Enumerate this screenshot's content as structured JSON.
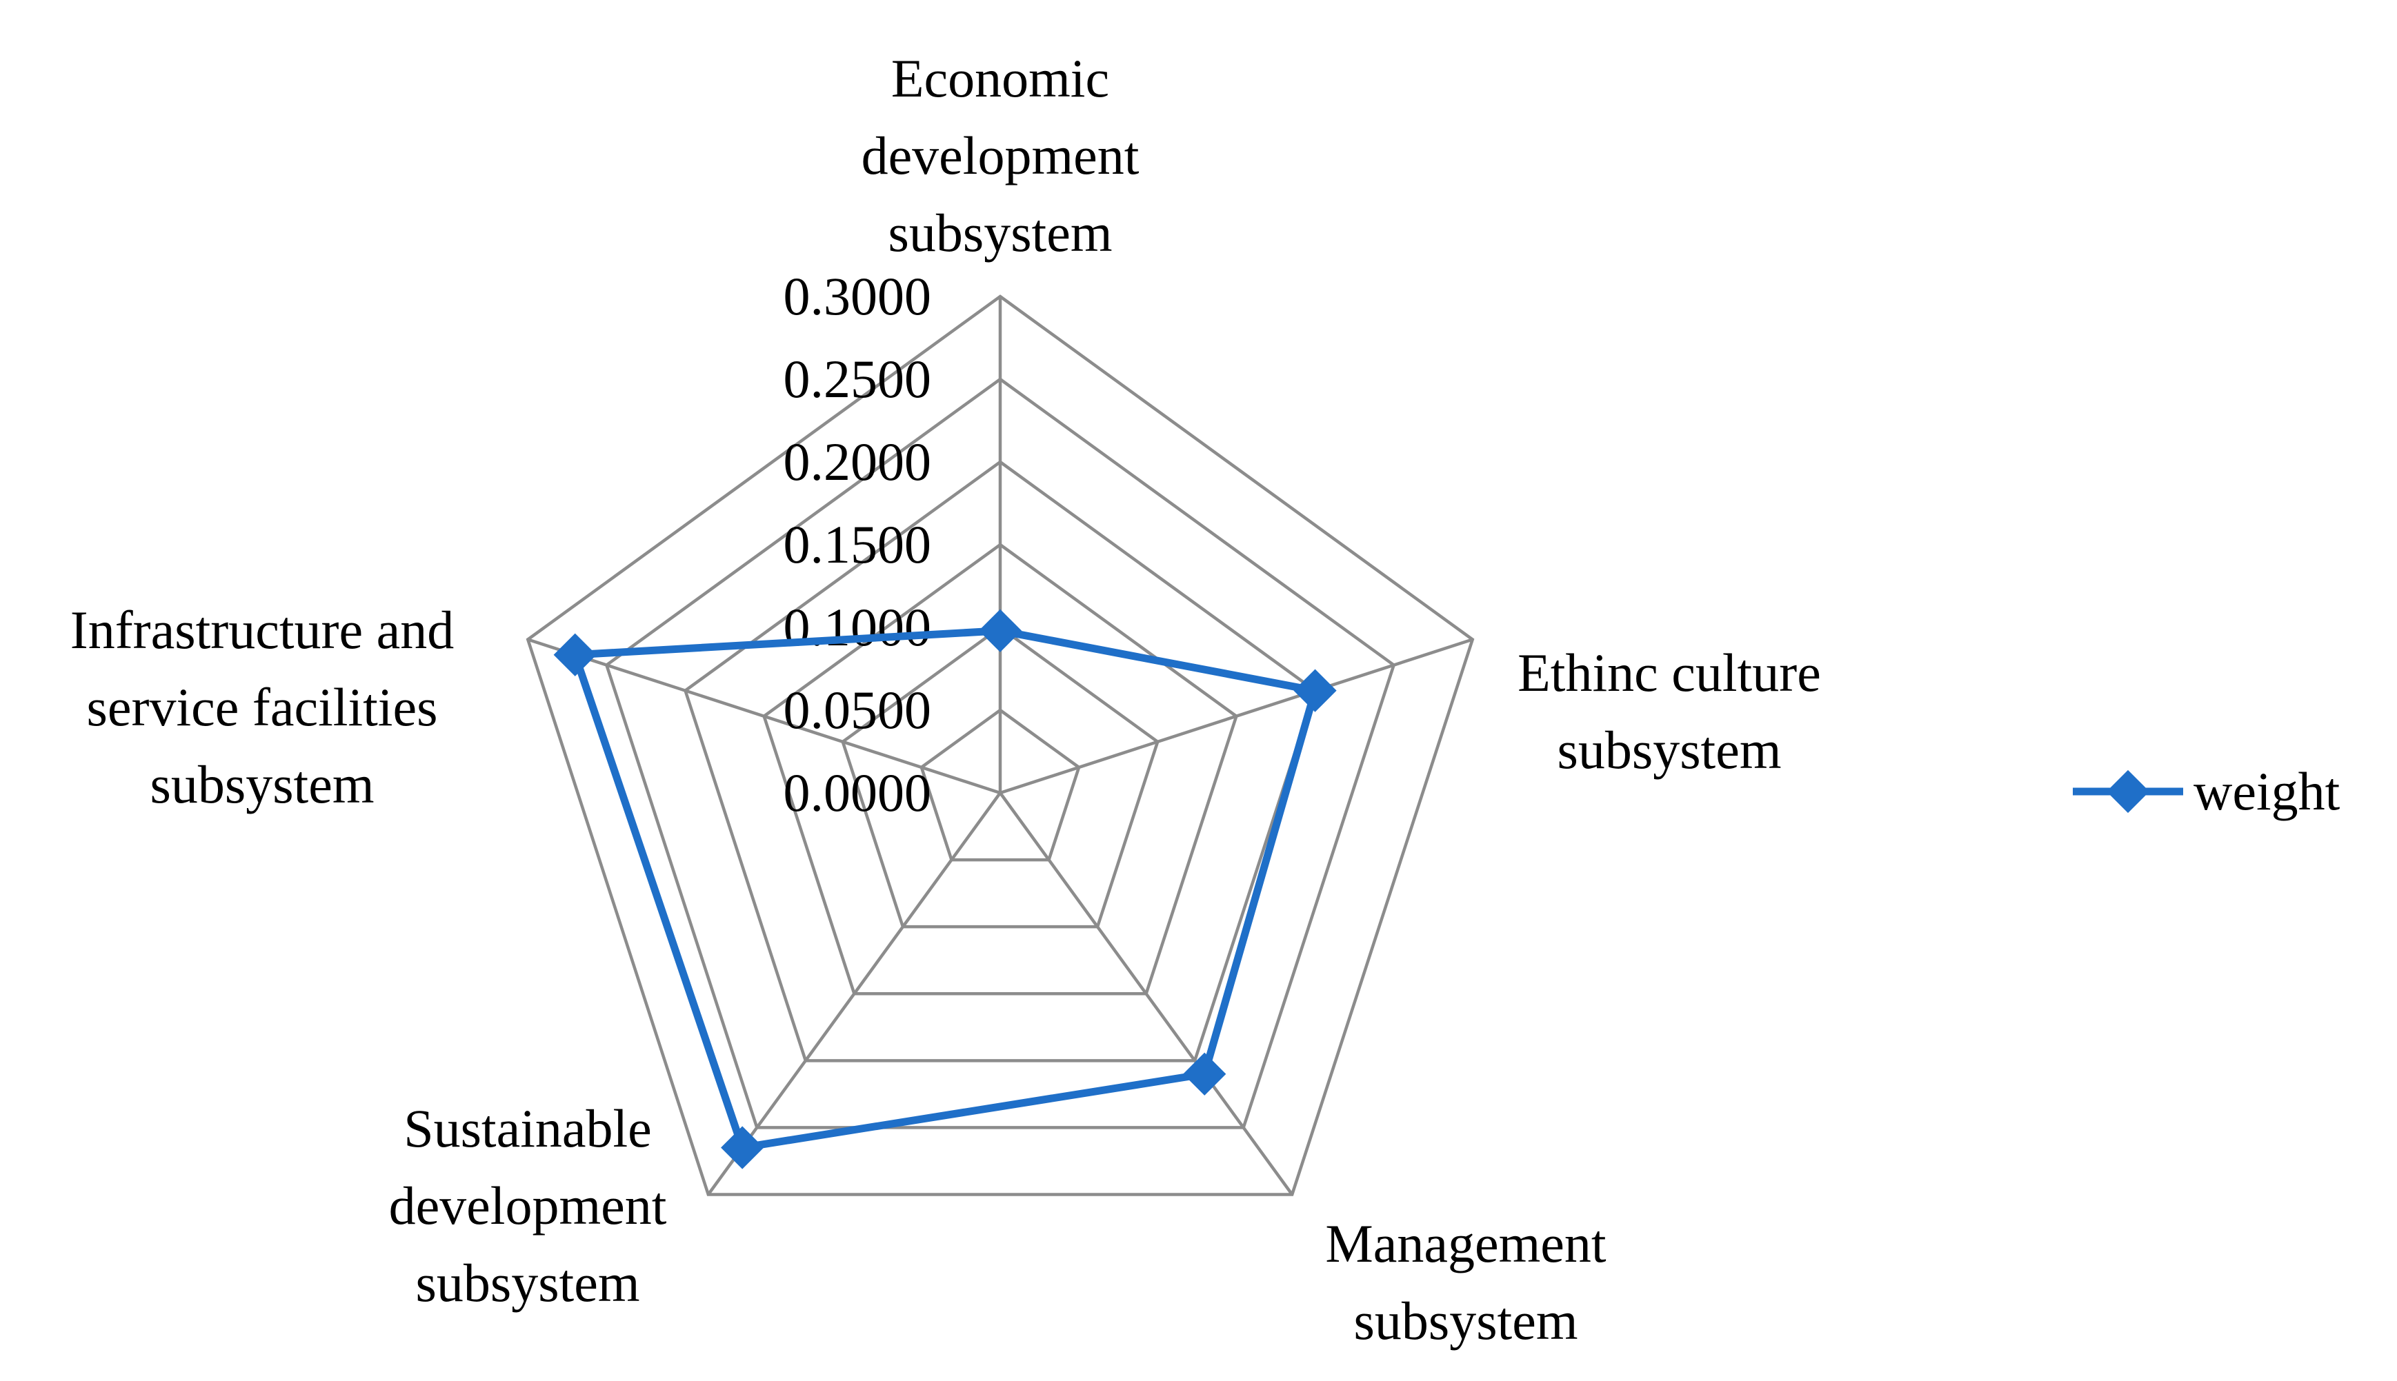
{
  "chart_data": {
    "type": "radar",
    "axes": [
      [
        "Economic",
        "development",
        "subsystem"
      ],
      [
        "Ethinc culture",
        "subsystem"
      ],
      [
        "Management",
        "subsystem"
      ],
      [
        "Sustainable",
        "development",
        "subsystem"
      ],
      [
        "Infrastructure and",
        "service facilities",
        "subsystem"
      ]
    ],
    "ticks": [
      "0.0000",
      "0.0500",
      "0.1000",
      "0.1500",
      "0.2000",
      "0.2500",
      "0.3000"
    ],
    "rlim": [
      0,
      0.3
    ],
    "series": [
      {
        "name": "weight",
        "color": "#1f6fc8",
        "marker": "diamond",
        "values": [
          0.098,
          0.2,
          0.21,
          0.265,
          0.27
        ]
      }
    ],
    "legend": {
      "position": "right"
    },
    "grid": true
  }
}
